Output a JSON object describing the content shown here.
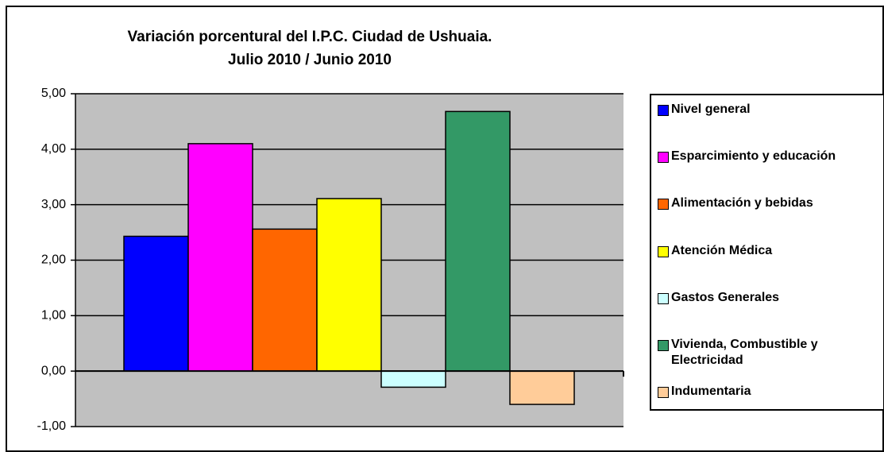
{
  "chart_data": {
    "type": "bar",
    "title": "Variación porcentural del I.P.C. Ciudad de Ushuaia.",
    "subtitle": "Julio 2010 / Junio 2010",
    "series": [
      {
        "name": "Nivel general",
        "color": "#0000ff",
        "values": [
          2.43
        ]
      },
      {
        "name": "Esparcimiento y educación",
        "color": "#ff00ff",
        "values": [
          4.1
        ]
      },
      {
        "name": "Alimentación y bebidas",
        "color": "#ff6600",
        "values": [
          2.56
        ]
      },
      {
        "name": "Atención Médica",
        "color": "#ffff00",
        "values": [
          3.11
        ]
      },
      {
        "name": "Gastos Generales",
        "color": "#ccffff",
        "values": [
          -0.29
        ]
      },
      {
        "name": "Vivienda, Combustible y Electricidad",
        "color": "#339966",
        "values": [
          4.68
        ]
      },
      {
        "name": "Indumentaria",
        "color": "#ffcc99",
        "values": [
          -0.6
        ]
      }
    ],
    "ylim": [
      -1,
      5
    ],
    "yticks": [
      {
        "value": -1,
        "label": "-1,00"
      },
      {
        "value": 0,
        "label": "0,00"
      },
      {
        "value": 1,
        "label": "1,00"
      },
      {
        "value": 2,
        "label": "2,00"
      },
      {
        "value": 3,
        "label": "3,00"
      },
      {
        "value": 4,
        "label": "4,00"
      },
      {
        "value": 5,
        "label": "5,00"
      }
    ],
    "grid": true,
    "legend_position": "right",
    "plot_background": "#c0c0c0"
  }
}
